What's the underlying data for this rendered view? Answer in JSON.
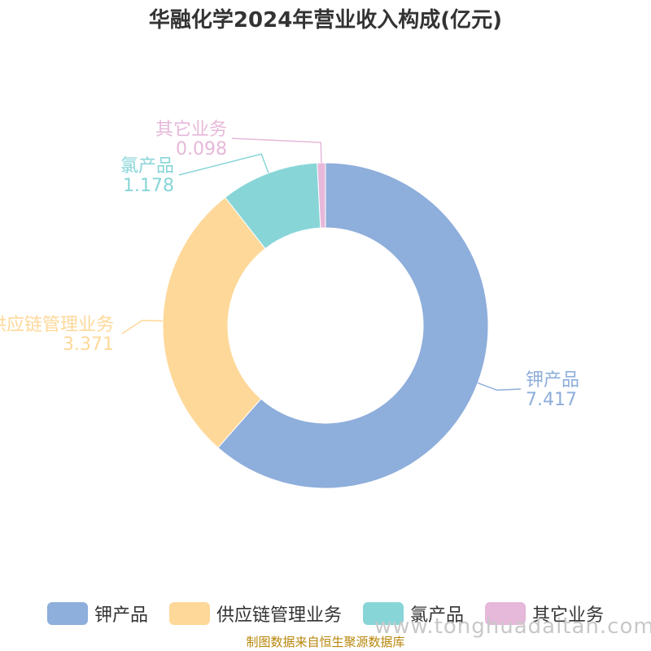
{
  "title": "华融化学2024年营业收入构成(亿元)",
  "chart_data": {
    "type": "pie",
    "donut": true,
    "title": "华融化学2024年营业收入构成(亿元)",
    "categories": [
      "钾产品",
      "供应链管理业务",
      "氯产品",
      "其它业务"
    ],
    "values": [
      7.417,
      3.371,
      1.178,
      0.098
    ],
    "value_labels": [
      "7.417",
      "3.371",
      "1.178",
      "0.098"
    ],
    "colors": [
      "#8eaedb",
      "#fed899",
      "#88d5d8",
      "#e6b8da"
    ],
    "legend_position": "bottom"
  },
  "legend": {
    "items": [
      {
        "label": "钾产品",
        "color": "#8eaedb"
      },
      {
        "label": "供应链管理业务",
        "color": "#fed899"
      },
      {
        "label": "氯产品",
        "color": "#88d5d8"
      },
      {
        "label": "其它业务",
        "color": "#e6b8da"
      }
    ]
  },
  "watermark": "www.tonghuadaitan.com",
  "source": "制图数据来自恒生聚源数据库"
}
